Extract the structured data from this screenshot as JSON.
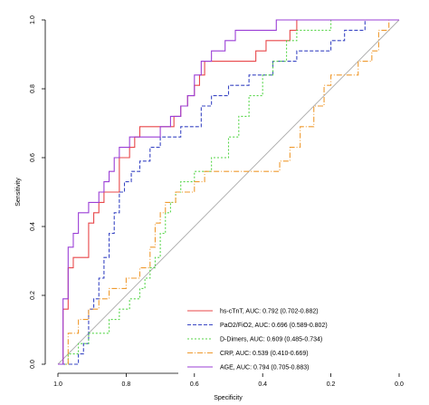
{
  "chart_data": {
    "type": "line",
    "xlabel": "Specificity",
    "ylabel": "Sensitivity",
    "xlim": [
      1.0,
      0.0
    ],
    "ylim": [
      0.0,
      1.0
    ],
    "x_reversed": true,
    "xticks": [
      "1.0",
      "0.8",
      "0.6",
      "0.4",
      "0.2",
      "0.0"
    ],
    "yticks": [
      "0.0",
      "0.2",
      "0.4",
      "0.6",
      "0.8",
      "1.0"
    ],
    "legend_position": "bottom-right",
    "reference_line": {
      "from": [
        1.0,
        0.0
      ],
      "to": [
        0.0,
        1.0
      ],
      "color": "#aaaaaa"
    },
    "series": [
      {
        "name": "hs-cTnT, AUC: 0.792 (0.702-0.882)",
        "color": "#e8474a",
        "dash": "",
        "points": [
          [
            1.0,
            0.0
          ],
          [
            0.985,
            0.0
          ],
          [
            0.985,
            0.16
          ],
          [
            0.97,
            0.16
          ],
          [
            0.97,
            0.28
          ],
          [
            0.955,
            0.28
          ],
          [
            0.955,
            0.31
          ],
          [
            0.91,
            0.31
          ],
          [
            0.91,
            0.41
          ],
          [
            0.895,
            0.41
          ],
          [
            0.895,
            0.44
          ],
          [
            0.88,
            0.44
          ],
          [
            0.88,
            0.47
          ],
          [
            0.865,
            0.47
          ],
          [
            0.865,
            0.5
          ],
          [
            0.82,
            0.5
          ],
          [
            0.82,
            0.6
          ],
          [
            0.79,
            0.6
          ],
          [
            0.79,
            0.63
          ],
          [
            0.775,
            0.63
          ],
          [
            0.775,
            0.66
          ],
          [
            0.76,
            0.66
          ],
          [
            0.76,
            0.69
          ],
          [
            0.72,
            0.69
          ],
          [
            0.72,
            0.69
          ],
          [
            0.7,
            0.69
          ],
          [
            0.66,
            0.69
          ],
          [
            0.66,
            0.72
          ],
          [
            0.64,
            0.72
          ],
          [
            0.64,
            0.75
          ],
          [
            0.62,
            0.75
          ],
          [
            0.62,
            0.78
          ],
          [
            0.6,
            0.78
          ],
          [
            0.6,
            0.81
          ],
          [
            0.585,
            0.81
          ],
          [
            0.585,
            0.84
          ],
          [
            0.57,
            0.84
          ],
          [
            0.57,
            0.88
          ],
          [
            0.42,
            0.88
          ],
          [
            0.42,
            0.91
          ],
          [
            0.39,
            0.91
          ],
          [
            0.39,
            0.94
          ],
          [
            0.32,
            0.94
          ],
          [
            0.32,
            0.97
          ],
          [
            0.3,
            0.97
          ],
          [
            0.3,
            1.0
          ],
          [
            0.0,
            1.0
          ]
        ]
      },
      {
        "name": "PaO2/FiO2, AUC: 0.696 (0.589-0.802)",
        "color": "#3a47c4",
        "dash": "4,2",
        "points": [
          [
            1.0,
            0.0
          ],
          [
            0.94,
            0.0
          ],
          [
            0.94,
            0.03
          ],
          [
            0.925,
            0.03
          ],
          [
            0.925,
            0.06
          ],
          [
            0.91,
            0.06
          ],
          [
            0.91,
            0.16
          ],
          [
            0.895,
            0.16
          ],
          [
            0.895,
            0.19
          ],
          [
            0.88,
            0.19
          ],
          [
            0.88,
            0.25
          ],
          [
            0.865,
            0.25
          ],
          [
            0.865,
            0.31
          ],
          [
            0.85,
            0.31
          ],
          [
            0.85,
            0.38
          ],
          [
            0.835,
            0.38
          ],
          [
            0.835,
            0.44
          ],
          [
            0.82,
            0.44
          ],
          [
            0.82,
            0.5
          ],
          [
            0.805,
            0.5
          ],
          [
            0.805,
            0.53
          ],
          [
            0.785,
            0.53
          ],
          [
            0.785,
            0.56
          ],
          [
            0.76,
            0.56
          ],
          [
            0.76,
            0.59
          ],
          [
            0.73,
            0.59
          ],
          [
            0.73,
            0.63
          ],
          [
            0.7,
            0.63
          ],
          [
            0.7,
            0.66
          ],
          [
            0.64,
            0.66
          ],
          [
            0.64,
            0.69
          ],
          [
            0.58,
            0.69
          ],
          [
            0.58,
            0.75
          ],
          [
            0.55,
            0.75
          ],
          [
            0.55,
            0.78
          ],
          [
            0.5,
            0.78
          ],
          [
            0.5,
            0.81
          ],
          [
            0.44,
            0.81
          ],
          [
            0.44,
            0.84
          ],
          [
            0.37,
            0.84
          ],
          [
            0.37,
            0.88
          ],
          [
            0.3,
            0.88
          ],
          [
            0.3,
            0.91
          ],
          [
            0.2,
            0.91
          ],
          [
            0.2,
            0.94
          ],
          [
            0.16,
            0.94
          ],
          [
            0.16,
            0.97
          ],
          [
            0.1,
            0.97
          ],
          [
            0.1,
            1.0
          ],
          [
            0.0,
            1.0
          ]
        ]
      },
      {
        "name": "D-Dimers, AUC: 0.609 (0.485-0.734)",
        "color": "#57d64a",
        "dash": "2,2",
        "points": [
          [
            1.0,
            0.0
          ],
          [
            0.97,
            0.0
          ],
          [
            0.97,
            0.03
          ],
          [
            0.94,
            0.03
          ],
          [
            0.94,
            0.06
          ],
          [
            0.91,
            0.06
          ],
          [
            0.91,
            0.09
          ],
          [
            0.85,
            0.09
          ],
          [
            0.85,
            0.13
          ],
          [
            0.82,
            0.13
          ],
          [
            0.82,
            0.16
          ],
          [
            0.79,
            0.16
          ],
          [
            0.79,
            0.19
          ],
          [
            0.76,
            0.19
          ],
          [
            0.76,
            0.22
          ],
          [
            0.745,
            0.22
          ],
          [
            0.745,
            0.25
          ],
          [
            0.73,
            0.25
          ],
          [
            0.73,
            0.28
          ],
          [
            0.715,
            0.28
          ],
          [
            0.715,
            0.31
          ],
          [
            0.7,
            0.31
          ],
          [
            0.7,
            0.38
          ],
          [
            0.685,
            0.38
          ],
          [
            0.685,
            0.44
          ],
          [
            0.67,
            0.44
          ],
          [
            0.67,
            0.47
          ],
          [
            0.655,
            0.47
          ],
          [
            0.655,
            0.5
          ],
          [
            0.64,
            0.5
          ],
          [
            0.64,
            0.53
          ],
          [
            0.6,
            0.53
          ],
          [
            0.6,
            0.56
          ],
          [
            0.55,
            0.56
          ],
          [
            0.55,
            0.6
          ],
          [
            0.5,
            0.6
          ],
          [
            0.5,
            0.66
          ],
          [
            0.47,
            0.66
          ],
          [
            0.47,
            0.72
          ],
          [
            0.44,
            0.72
          ],
          [
            0.44,
            0.78
          ],
          [
            0.4,
            0.78
          ],
          [
            0.4,
            0.84
          ],
          [
            0.37,
            0.84
          ],
          [
            0.37,
            0.88
          ],
          [
            0.33,
            0.88
          ],
          [
            0.33,
            0.94
          ],
          [
            0.3,
            0.94
          ],
          [
            0.3,
            0.97
          ],
          [
            0.2,
            0.97
          ],
          [
            0.2,
            1.0
          ],
          [
            0.0,
            1.0
          ]
        ]
      },
      {
        "name": "CRP, AUC: 0.539 (0.410-0.669)",
        "color": "#ef9a2f",
        "dash": "6,2,1,2",
        "points": [
          [
            1.0,
            0.0
          ],
          [
            0.97,
            0.0
          ],
          [
            0.97,
            0.09
          ],
          [
            0.94,
            0.09
          ],
          [
            0.94,
            0.13
          ],
          [
            0.91,
            0.13
          ],
          [
            0.91,
            0.16
          ],
          [
            0.88,
            0.16
          ],
          [
            0.88,
            0.19
          ],
          [
            0.85,
            0.19
          ],
          [
            0.85,
            0.22
          ],
          [
            0.8,
            0.22
          ],
          [
            0.8,
            0.25
          ],
          [
            0.76,
            0.25
          ],
          [
            0.76,
            0.28
          ],
          [
            0.73,
            0.28
          ],
          [
            0.73,
            0.34
          ],
          [
            0.715,
            0.34
          ],
          [
            0.715,
            0.41
          ],
          [
            0.7,
            0.41
          ],
          [
            0.7,
            0.44
          ],
          [
            0.685,
            0.44
          ],
          [
            0.685,
            0.47
          ],
          [
            0.655,
            0.47
          ],
          [
            0.655,
            0.5
          ],
          [
            0.6,
            0.5
          ],
          [
            0.6,
            0.53
          ],
          [
            0.57,
            0.53
          ],
          [
            0.57,
            0.56
          ],
          [
            0.35,
            0.56
          ],
          [
            0.35,
            0.59
          ],
          [
            0.32,
            0.59
          ],
          [
            0.32,
            0.63
          ],
          [
            0.29,
            0.63
          ],
          [
            0.29,
            0.69
          ],
          [
            0.25,
            0.69
          ],
          [
            0.25,
            0.75
          ],
          [
            0.22,
            0.75
          ],
          [
            0.22,
            0.81
          ],
          [
            0.2,
            0.81
          ],
          [
            0.2,
            0.84
          ],
          [
            0.12,
            0.84
          ],
          [
            0.12,
            0.88
          ],
          [
            0.08,
            0.88
          ],
          [
            0.08,
            0.91
          ],
          [
            0.06,
            0.91
          ],
          [
            0.06,
            0.97
          ],
          [
            0.03,
            0.97
          ],
          [
            0.03,
            1.0
          ],
          [
            0.0,
            1.0
          ]
        ]
      },
      {
        "name": "AGE, AUC: 0.794 (0.705-0.883)",
        "color": "#9b3fd6",
        "dash": "",
        "points": [
          [
            1.0,
            0.0
          ],
          [
            0.985,
            0.0
          ],
          [
            0.985,
            0.19
          ],
          [
            0.97,
            0.19
          ],
          [
            0.97,
            0.34
          ],
          [
            0.955,
            0.34
          ],
          [
            0.955,
            0.38
          ],
          [
            0.94,
            0.38
          ],
          [
            0.94,
            0.44
          ],
          [
            0.91,
            0.44
          ],
          [
            0.91,
            0.47
          ],
          [
            0.88,
            0.47
          ],
          [
            0.88,
            0.5
          ],
          [
            0.865,
            0.5
          ],
          [
            0.865,
            0.53
          ],
          [
            0.85,
            0.53
          ],
          [
            0.85,
            0.56
          ],
          [
            0.835,
            0.56
          ],
          [
            0.835,
            0.6
          ],
          [
            0.82,
            0.6
          ],
          [
            0.82,
            0.63
          ],
          [
            0.79,
            0.63
          ],
          [
            0.79,
            0.66
          ],
          [
            0.7,
            0.66
          ],
          [
            0.7,
            0.69
          ],
          [
            0.67,
            0.69
          ],
          [
            0.67,
            0.72
          ],
          [
            0.64,
            0.72
          ],
          [
            0.64,
            0.75
          ],
          [
            0.62,
            0.75
          ],
          [
            0.62,
            0.78
          ],
          [
            0.6,
            0.78
          ],
          [
            0.6,
            0.84
          ],
          [
            0.58,
            0.84
          ],
          [
            0.58,
            0.88
          ],
          [
            0.55,
            0.88
          ],
          [
            0.55,
            0.91
          ],
          [
            0.51,
            0.91
          ],
          [
            0.51,
            0.94
          ],
          [
            0.48,
            0.94
          ],
          [
            0.48,
            0.97
          ],
          [
            0.36,
            0.97
          ],
          [
            0.36,
            1.0
          ],
          [
            0.0,
            1.0
          ]
        ]
      }
    ]
  }
}
